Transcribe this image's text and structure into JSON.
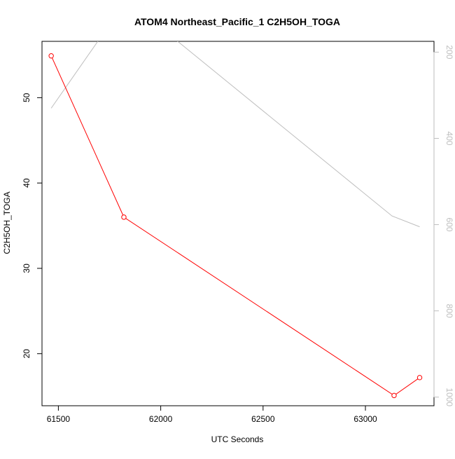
{
  "chart_data": {
    "type": "line",
    "title": "ATOM4 Northeast_Pacific_1 C2H5OH_TOGA",
    "xlabel": "UTC Seconds",
    "ylabel": "C2H5OH_TOGA",
    "xlim": [
      61420,
      63335
    ],
    "ylim": [
      13.9,
      56.6
    ],
    "y2lim": [
      1020,
      175
    ],
    "y2_reversed": true,
    "x_ticks": [
      61500,
      62000,
      62500,
      63000
    ],
    "y_ticks": [
      20,
      30,
      40,
      50
    ],
    "y2_ticks": [
      200,
      400,
      600,
      800,
      1000
    ],
    "grid": false,
    "legend": "none",
    "series": [
      {
        "x": [
          61465,
          61820,
          63140,
          63265
        ],
        "y": [
          54.9,
          36.0,
          15.1,
          17.2
        ],
        "color": "#ff0000",
        "marker": "open-circle"
      },
      {
        "axis": "right",
        "x": [
          61465,
          61700,
          62070,
          63130,
          63265
        ],
        "y": [
          330,
          170,
          170,
          580,
          605
        ],
        "color": "#bebebe",
        "marker": "none"
      }
    ],
    "colors": {
      "main_series": "#ff0000",
      "secondary_series": "#bebebe",
      "secondary_axis_text": "#bebebe",
      "axis": "#000000"
    }
  }
}
